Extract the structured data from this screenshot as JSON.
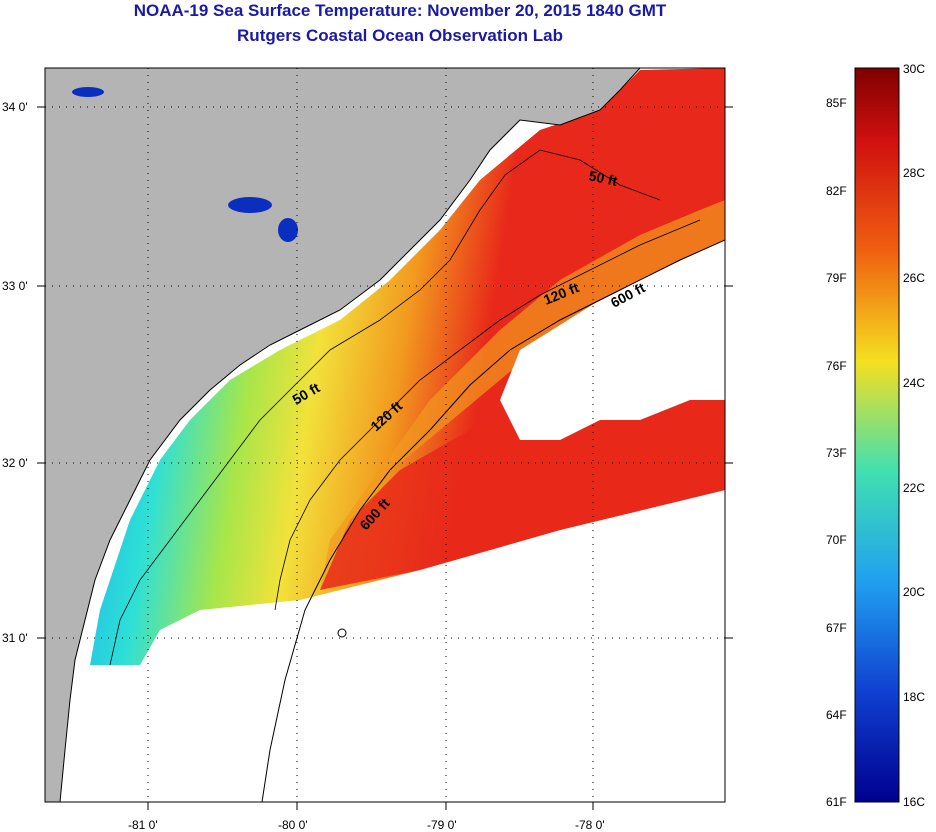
{
  "header": {
    "title": "NOAA-19 Sea Surface Temperature:  November 20, 2015 1840 GMT",
    "subtitle": "Rutgers Coastal Ocean Observation Lab"
  },
  "map": {
    "latitude_labels": [
      "34 0'",
      "33 0'",
      "32 0'",
      "31 0'"
    ],
    "longitude_labels": [
      "-81 0'",
      "-80 0'",
      "-79 0'",
      "-78 0'"
    ],
    "depth_contours": [
      "50 ft",
      "50 ft",
      "120 ft",
      "120 ft",
      "600 ft",
      "600 ft"
    ],
    "colors": {
      "land": "#b4b4b4",
      "no_data": "#ffffff",
      "coast_blue": "#2a8de0",
      "shelf_cyan": "#2ee0d6",
      "mid_green": "#a6e64a",
      "yellow": "#f2e23a",
      "orange": "#f29a1f",
      "red": "#e8281a"
    }
  },
  "colorbar": {
    "fahrenheit_labels": [
      "85F",
      "82F",
      "79F",
      "76F",
      "73F",
      "70F",
      "67F",
      "64F",
      "61F"
    ],
    "celsius_labels": [
      "30C",
      "28C",
      "26C",
      "24C",
      "22C",
      "20C",
      "18C",
      "16C"
    ],
    "min_color": "#00008f",
    "max_color": "#800000"
  }
}
